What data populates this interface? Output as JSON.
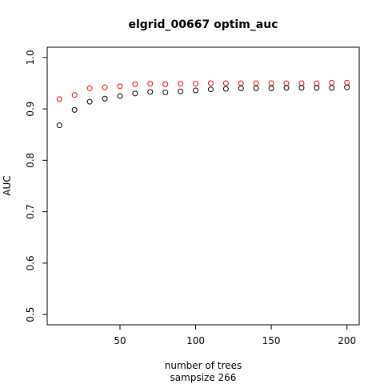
{
  "chart_data": {
    "type": "scatter",
    "title": "elgrid_00667 optim_auc",
    "xlabel": "number of trees",
    "sublabel": "sampsize 266",
    "ylabel": "AUC",
    "xlim": [
      1.9,
      208.1
    ],
    "ylim": [
      0.48,
      1.02
    ],
    "xticks": [
      50,
      100,
      150,
      200
    ],
    "yticks": [
      0.5,
      0.6,
      0.7,
      0.8,
      0.9,
      1.0
    ],
    "ytick_labels": [
      "0.5",
      "0.6",
      "0.7",
      "0.8",
      "0.9",
      "1.0"
    ],
    "grid": false,
    "x": [
      10,
      20,
      30,
      40,
      50,
      60,
      70,
      80,
      90,
      100,
      110,
      120,
      130,
      140,
      150,
      160,
      170,
      180,
      190,
      200
    ],
    "series": [
      {
        "color": "#ff0000",
        "marker": "open-circle",
        "values": [
          0.919,
          0.927,
          0.94,
          0.942,
          0.944,
          0.948,
          0.949,
          0.948,
          0.949,
          0.949,
          0.95,
          0.95,
          0.95,
          0.95,
          0.95,
          0.95,
          0.95,
          0.95,
          0.951,
          0.951
        ]
      },
      {
        "color": "#000000",
        "marker": "open-circle",
        "values": [
          0.868,
          0.898,
          0.914,
          0.92,
          0.925,
          0.93,
          0.933,
          0.932,
          0.934,
          0.936,
          0.938,
          0.939,
          0.94,
          0.94,
          0.94,
          0.941,
          0.941,
          0.941,
          0.941,
          0.942
        ]
      }
    ]
  }
}
